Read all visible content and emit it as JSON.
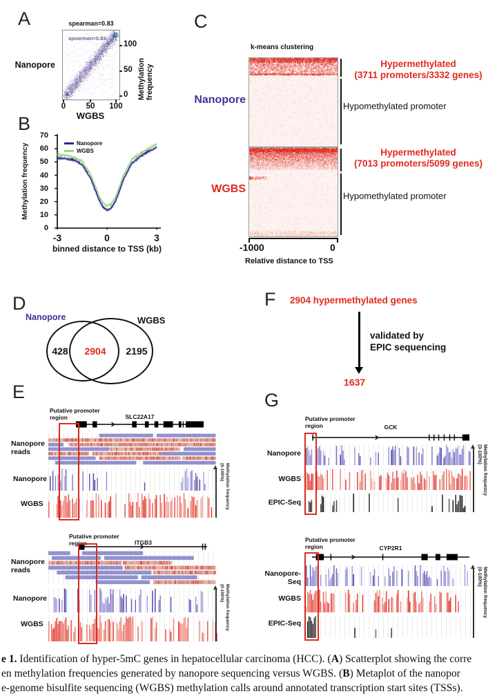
{
  "panelA": {
    "label": "A",
    "annotation": "spearman=0.83",
    "inner_annotation": "spearman=0.83",
    "left_label": "Nanopore",
    "y_label_line1": "Methylation",
    "y_label_line2": "frequency",
    "y_ticks": [
      "100",
      "50",
      "0"
    ],
    "x_ticks": [
      "0",
      "50",
      "100"
    ],
    "x_label": "WGBS"
  },
  "panelB": {
    "label": "B",
    "y_label": "Methylation frequency",
    "y_ticks": [
      "70",
      "60",
      "50",
      "40",
      "30",
      "20",
      "10",
      "0"
    ],
    "x_ticks": [
      "-3",
      "0",
      "3"
    ],
    "x_label": "binned distance to TSS (kb)",
    "legend": [
      {
        "name": "Nanopore",
        "color": "#2b2b8c"
      },
      {
        "name": "WGBS",
        "color": "#9fd47d"
      }
    ]
  },
  "panelC": {
    "label": "C",
    "title": "k-means clustering",
    "maps": [
      {
        "side_label": "Nanopore",
        "hyper_line1": "Hypermethylated",
        "hyper_line2": "(3711 promoters/3332 genes)",
        "hypo_label": "Hypomethylated promoter"
      },
      {
        "side_label": "WGBS",
        "hyper_line1": "Hypermethylated",
        "hyper_line2": "(7013 promoters/5099 genes)",
        "hypo_label": "Hypomethylated promoter"
      }
    ],
    "x_tick_left": "-1000",
    "x_tick_right": "0",
    "x_label": "Relative distance to TSS"
  },
  "panelD": {
    "label": "D",
    "left_set": "Nanopore",
    "right_set": "WGBS",
    "left_only": "428",
    "overlap": "2904",
    "right_only": "2195"
  },
  "panelE": {
    "label": "E",
    "sub": [
      {
        "promoter_line1": "Putative promoter",
        "promoter_line2": "region",
        "gene": "SLC22A17",
        "tracks": [
          "Nanopore reads",
          "Nanopore",
          "WGBS"
        ],
        "right_label_line1": "Methylation frequency",
        "right_label_line2": "(0-100%)"
      },
      {
        "promoter_line1": "Putative promoter",
        "promoter_line2": "region",
        "gene": "ITGB3",
        "tracks": [
          "Nanopore reads",
          "Nanopore",
          "WGBS"
        ],
        "right_label_line1": "Methylation frequency",
        "right_label_line2": "(0-100%)"
      }
    ]
  },
  "panelF": {
    "label": "F",
    "top_text": "2904 hypermethylated genes",
    "arrow_note_line1": "validated by",
    "arrow_note_line2": "EPIC sequencing",
    "bottom_text": "1637"
  },
  "panelG": {
    "label": "G",
    "sub": [
      {
        "promoter_line1": "Putative promoter",
        "promoter_line2": "region",
        "gene": "GCK",
        "tracks": [
          "Nanopore",
          "WGBS",
          "EPIC-Seq"
        ],
        "right_label_line1": "Methylation frequency",
        "right_label_line2": "(0-100%)"
      },
      {
        "promoter_line1": "Putative promoter",
        "promoter_line2": "region",
        "gene": "CYP2R1",
        "tracks": [
          "Nanopore-Seq",
          "WGBS",
          "EPIC-Seq"
        ],
        "right_label_line1": "Methylation frequency",
        "right_label_line2": "(0-100%)"
      }
    ]
  },
  "caption": {
    "l1_bold": "e 1.",
    "l1_text": " Identification of hyper-5mC genes in hepatocellular carcinoma (HCC). (",
    "l1_bold2": "A",
    "l1_text2": ") Scatterplot showing the corre",
    "l2_text": "en methylation frequencies generated by nanopore sequencing versus WGBS. (",
    "l2_bold": "B",
    "l2_text2": ") Metaplot of the nanopor",
    "l3_text": "e-genome bisulfite sequencing (WGBS) methylation calls around annotated transcription start sites (TSSs)."
  },
  "colors": {
    "accent_red": "#e0291e",
    "accent_blue": "#3b3496",
    "nanopore_navy": "#2b2b8c",
    "wgbs_green": "#9fd47d"
  },
  "chart_data": [
    {
      "type": "scatter",
      "title": "spearman=0.83",
      "xlabel": "WGBS",
      "ylabel": "Methylation frequency",
      "xlim": [
        0,
        100
      ],
      "ylim": [
        0,
        100
      ],
      "note": "density scatterplot of per-site methylation frequency, nanopore vs WGBS; dense diagonal band with density hotspots near (0,0) and (100,100)"
    },
    {
      "type": "line",
      "xlabel": "binned distance to TSS (kb)",
      "ylabel": "Methylation frequency",
      "xlim": [
        -3,
        3
      ],
      "ylim": [
        0,
        70
      ],
      "legend_position": "top-left",
      "x": [
        -3,
        -2.5,
        -2,
        -1.5,
        -1,
        -0.75,
        -0.5,
        -0.25,
        0,
        0.25,
        0.5,
        0.75,
        1,
        1.5,
        2,
        2.5,
        3
      ],
      "series": [
        {
          "name": "Nanopore",
          "color": "#2b2b8c",
          "values": [
            53,
            52.5,
            51.5,
            48,
            38,
            30,
            22,
            16,
            13.5,
            15,
            20,
            28,
            37,
            49,
            54,
            58,
            61
          ]
        },
        {
          "name": "WGBS",
          "color": "#9fd47d",
          "values": [
            55.5,
            55,
            53.5,
            50.5,
            41,
            33,
            25,
            19,
            17,
            18,
            23,
            31,
            40,
            52,
            56.5,
            60,
            63.5
          ]
        }
      ]
    },
    {
      "type": "heatmap",
      "title": "k-means clustering",
      "xlabel": "Relative distance to TSS",
      "xticks": [
        -1000,
        0
      ],
      "rows": [
        {
          "name": "Nanopore",
          "clusters": [
            {
              "label": "Hypermethylated (3711 promoters/3332 genes)"
            },
            {
              "label": "Hypomethylated promoter"
            }
          ]
        },
        {
          "name": "WGBS",
          "clusters": [
            {
              "label": "Hypermethylated (7013 promoters/5099 genes)"
            },
            {
              "label": "Hypomethylated promoter"
            }
          ]
        }
      ]
    }
  ]
}
